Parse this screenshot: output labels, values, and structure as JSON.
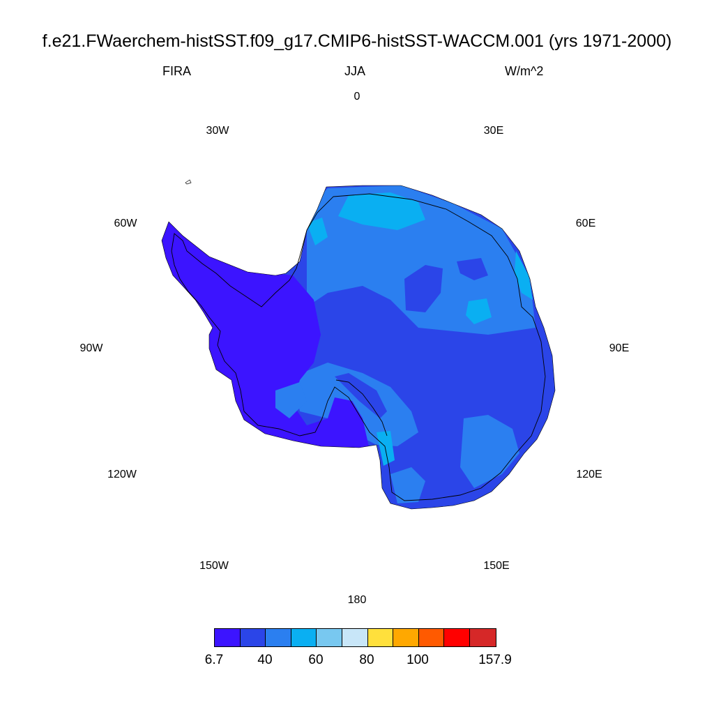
{
  "title": "f.e21.FWaerchem-histSST.f09_g17.CMIP6-histSST-WACCM.001 (yrs 1971-2000)",
  "subtitle_left": "FIRA",
  "subtitle_center": "JJA",
  "subtitle_right": "W/m^2",
  "longitude_labels": {
    "lon_0": "0",
    "lon_30e": "30E",
    "lon_60e": "60E",
    "lon_90e": "90E",
    "lon_120e": "120E",
    "lon_150e": "150E",
    "lon_180": "180",
    "lon_150w": "150W",
    "lon_120w": "120W",
    "lon_90w": "90W",
    "lon_60w": "60W",
    "lon_30w": "30W"
  },
  "colorbar": {
    "colors": [
      "#3c14ff",
      "#2b45e8",
      "#2b7ff0",
      "#0aaff2",
      "#78c8f0",
      "#c8e6f8",
      "#ffe03c",
      "#ffa800",
      "#ff5a00",
      "#ff0000",
      "#d62828"
    ],
    "labels": [
      "6.7",
      "40",
      "60",
      "80",
      "100",
      "157.9"
    ]
  },
  "region_colors": {
    "west_dark": "#3c14ff",
    "interior_mid": "#2b45e8",
    "plateau_light": "#2b7ff0",
    "coast_cyan": "#0aaff2"
  }
}
